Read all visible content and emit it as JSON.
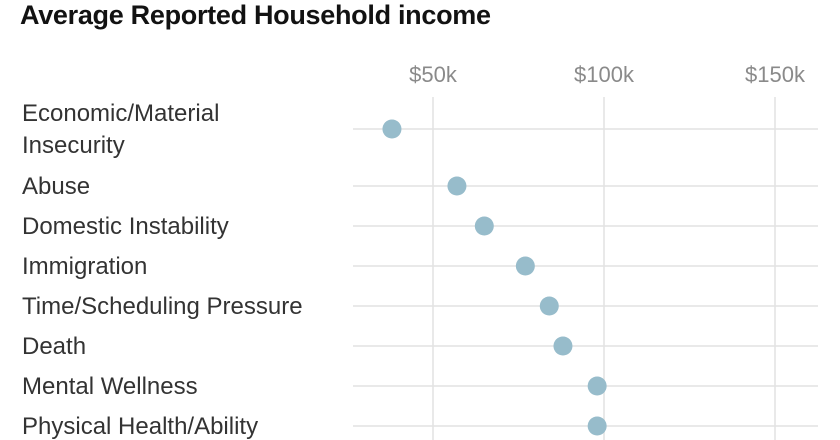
{
  "chart_data": {
    "type": "scatter",
    "title": "Average Reported Household income",
    "categories": [
      [
        "Economic/Material",
        "Insecurity"
      ],
      [
        "Abuse"
      ],
      [
        "Domestic Instability"
      ],
      [
        "Immigration"
      ],
      [
        "Time/Scheduling Pressure"
      ],
      [
        "Death"
      ],
      [
        "Mental Wellness"
      ],
      [
        "Physical Health/Ability"
      ]
    ],
    "values": [
      38000,
      57000,
      65000,
      77000,
      84000,
      88000,
      98000,
      98000
    ],
    "x_ticks": [
      {
        "value": 50000,
        "label": "$50k"
      },
      {
        "value": 100000,
        "label": "$100k"
      },
      {
        "value": 150000,
        "label": "$150k"
      }
    ],
    "xlim": [
      25000,
      160000
    ],
    "grid": true,
    "colors": {
      "dot": "#97bccb",
      "grid": "#e2e2e2",
      "text": "#333333",
      "tick": "#8a8a8a"
    }
  }
}
